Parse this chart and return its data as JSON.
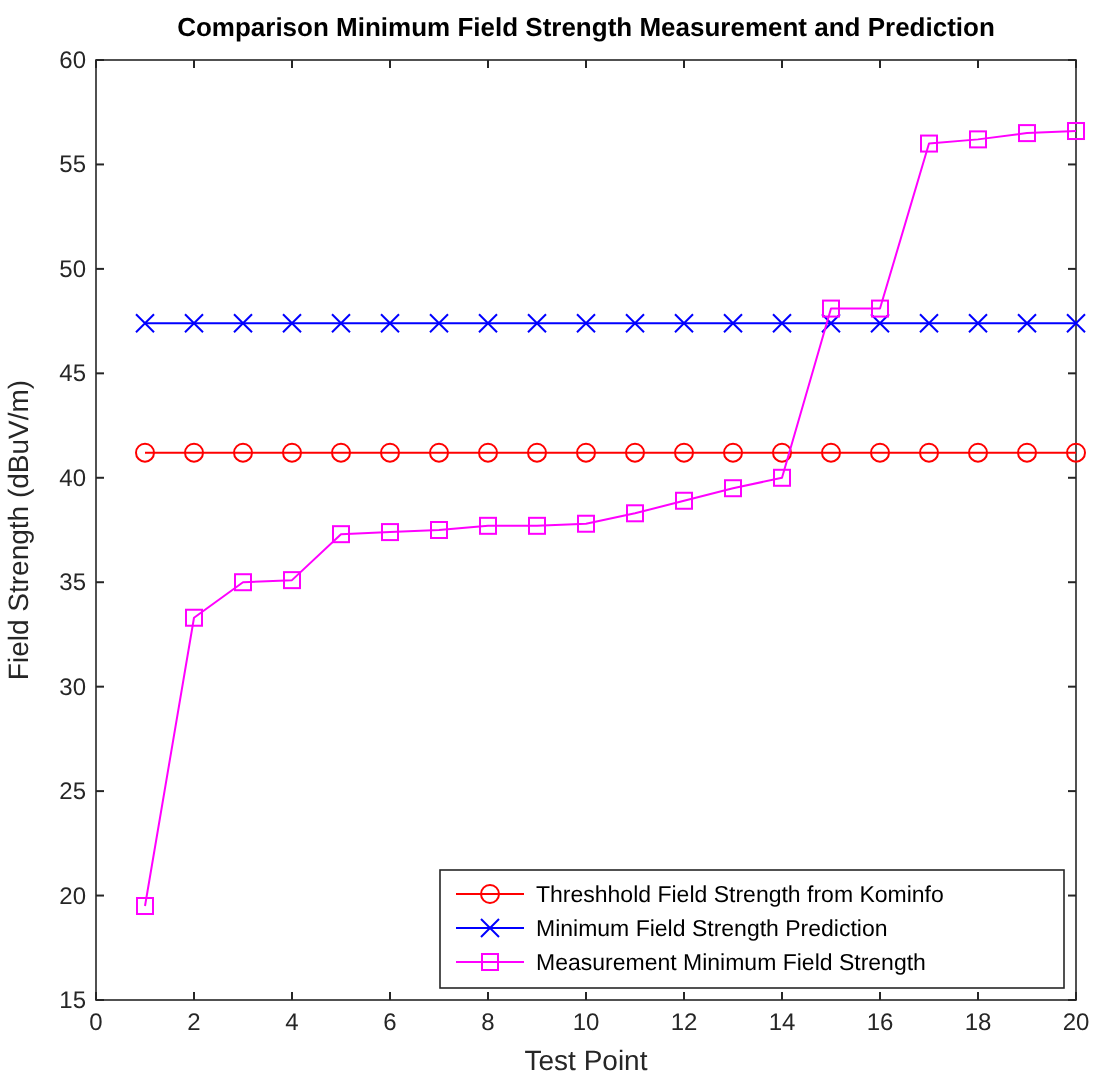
{
  "chart_data": {
    "type": "line",
    "title": "Comparison Minimum Field Strength Measurement and Prediction",
    "xlabel": "Test Point",
    "ylabel": "Field Strength (dBuV/m)",
    "x": [
      1,
      2,
      3,
      4,
      5,
      6,
      7,
      8,
      9,
      10,
      11,
      12,
      13,
      14,
      15,
      16,
      17,
      18,
      19,
      20
    ],
    "series": [
      {
        "name": "Threshhold Field Strength from Kominfo",
        "color": "#ff0000",
        "marker": "circle",
        "values": [
          41.2,
          41.2,
          41.2,
          41.2,
          41.2,
          41.2,
          41.2,
          41.2,
          41.2,
          41.2,
          41.2,
          41.2,
          41.2,
          41.2,
          41.2,
          41.2,
          41.2,
          41.2,
          41.2,
          41.2
        ]
      },
      {
        "name": "Minimum Field Strength Prediction",
        "color": "#0000ff",
        "marker": "cross",
        "values": [
          47.4,
          47.4,
          47.4,
          47.4,
          47.4,
          47.4,
          47.4,
          47.4,
          47.4,
          47.4,
          47.4,
          47.4,
          47.4,
          47.4,
          47.4,
          47.4,
          47.4,
          47.4,
          47.4,
          47.4
        ]
      },
      {
        "name": "Measurement Minimum Field Strength",
        "color": "#ff00ff",
        "marker": "square",
        "values": [
          19.5,
          33.3,
          35.0,
          35.1,
          37.3,
          37.4,
          37.5,
          37.7,
          37.7,
          37.8,
          38.3,
          38.9,
          39.5,
          40.0,
          48.1,
          48.1,
          56.0,
          56.2,
          56.5,
          56.6
        ]
      }
    ],
    "xlim": [
      0,
      20
    ],
    "xticks": [
      0,
      2,
      4,
      6,
      8,
      10,
      12,
      14,
      16,
      18,
      20
    ],
    "ylim": [
      15,
      60
    ],
    "yticks": [
      15,
      20,
      25,
      30,
      35,
      40,
      45,
      50,
      55,
      60
    ],
    "grid": false,
    "legend": "bottom right",
    "line_style": "solid"
  }
}
